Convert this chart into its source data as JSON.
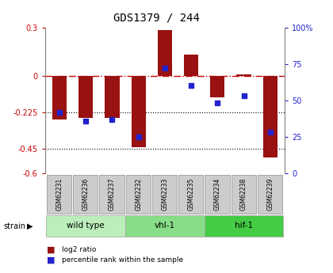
{
  "title": "GDS1379 / 244",
  "samples": [
    "GSM62231",
    "GSM62236",
    "GSM62237",
    "GSM62232",
    "GSM62233",
    "GSM62235",
    "GSM62234",
    "GSM62238",
    "GSM62239"
  ],
  "log2_ratio": [
    -0.27,
    -0.26,
    -0.26,
    -0.44,
    0.285,
    0.13,
    -0.13,
    0.01,
    -0.5
  ],
  "percentile_rank": [
    42,
    36,
    37,
    25,
    72,
    60,
    48,
    53,
    28
  ],
  "groups": [
    {
      "label": "wild type",
      "indices": [
        0,
        1,
        2
      ],
      "color": "#bbeebb"
    },
    {
      "label": "vhl-1",
      "indices": [
        3,
        4,
        5
      ],
      "color": "#88dd88"
    },
    {
      "label": "hif-1",
      "indices": [
        6,
        7,
        8
      ],
      "color": "#44cc44"
    }
  ],
  "ylim_left": [
    -0.6,
    0.3
  ],
  "ylim_right": [
    0,
    100
  ],
  "yticks_left": [
    -0.6,
    -0.45,
    -0.225,
    0,
    0.3
  ],
  "ytick_labels_left": [
    "-0.6",
    "-0.45",
    "-0.225",
    "0",
    "0.3"
  ],
  "yticks_right": [
    0,
    25,
    50,
    75,
    100
  ],
  "ytick_labels_right": [
    "0",
    "25",
    "50",
    "75",
    "100%"
  ],
  "hline_zero_color": "#cc0000",
  "hline_dotted_vals": [
    -0.225,
    -0.45
  ],
  "bar_color": "#991111",
  "dot_color": "#2222cc",
  "bar_width": 0.55,
  "legend_labels": [
    "log2 ratio",
    "percentile rank within the sample"
  ],
  "legend_colors": [
    "#991111",
    "#2222cc"
  ],
  "strain_label": "strain",
  "tick_label_color_left": "#cc0000",
  "tick_label_color_right": "#2222cc",
  "sample_box_color": "#cccccc",
  "sample_box_edge": "#999999"
}
